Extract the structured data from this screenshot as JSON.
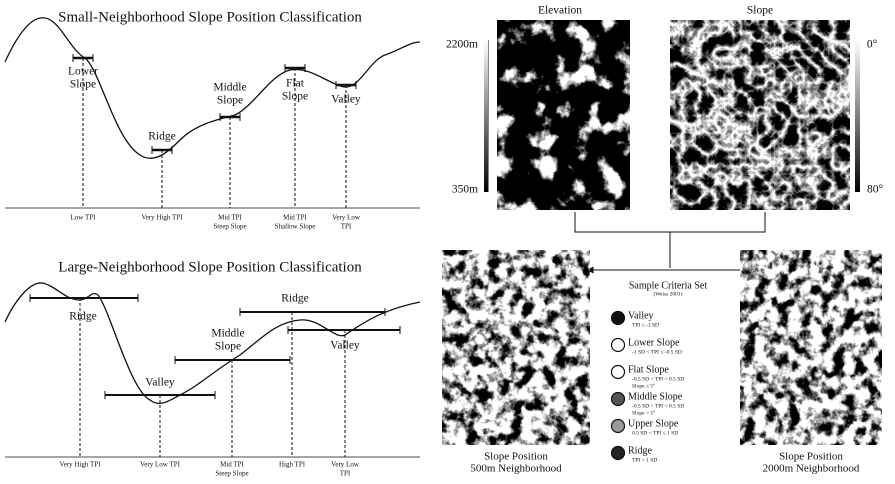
{
  "small": {
    "title": "Small-Neighborhood Slope Position Classification",
    "labels": [
      [
        "Lower",
        "Slope"
      ],
      [
        "Ridge"
      ],
      [
        "Middle",
        "Slope"
      ],
      [
        "Flat",
        "Slope"
      ],
      [
        "Valley"
      ]
    ],
    "axis": [
      [
        "Low TPI"
      ],
      [
        "Very High TPI"
      ],
      [
        "Mid TPI",
        "Steep Slope"
      ],
      [
        "Mid TPI",
        "Shallow Slope"
      ],
      [
        "Very Low",
        "TPI"
      ]
    ]
  },
  "large": {
    "title": "Large-Neighborhood Slope Position Classification",
    "labels": [
      [
        "Ridge"
      ],
      [
        "Valley"
      ],
      [
        "Middle",
        "Slope"
      ],
      [
        "Ridge"
      ],
      [
        "Valley"
      ]
    ],
    "axis": [
      [
        "Very High TPI"
      ],
      [
        "Very Low TPI"
      ],
      [
        "Mid TPI",
        "Steep Slope"
      ],
      [
        "High TPI"
      ],
      [
        "Very Low",
        "TPI"
      ]
    ]
  },
  "maps": {
    "elevation": {
      "title": "Elevation",
      "max": "2200m",
      "min": "350m"
    },
    "slope": {
      "title": "Slope",
      "min": "0°",
      "max": "80°"
    },
    "pos500": [
      "Slope Position",
      "500m Neighborhood"
    ],
    "pos2000": [
      "Slope Position",
      "2000m Neighborhood"
    ]
  },
  "criteria": {
    "title": "Sample Criteria Set",
    "source": "(Weiss 2001)",
    "items": [
      {
        "name": "Valley",
        "rule": [
          "TPI ≤ -1 SD"
        ]
      },
      {
        "name": "Lower Slope",
        "rule": [
          "-1 SD < TPI ≤ -0.5 SD"
        ]
      },
      {
        "name": "Flat Slope",
        "rule": [
          "-0.5 SD < TPI < 0.5 SD",
          "Slope ≤ 5°"
        ]
      },
      {
        "name": "Middle Slope",
        "rule": [
          "-0.5 SD < TPI < 0.5 SD",
          "Slope > 5°"
        ]
      },
      {
        "name": "Upper Slope",
        "rule": [
          "0.5 SD < TPI ≤ 1 SD"
        ]
      },
      {
        "name": "Ridge",
        "rule": [
          "TPI > 1 SD"
        ]
      }
    ]
  }
}
